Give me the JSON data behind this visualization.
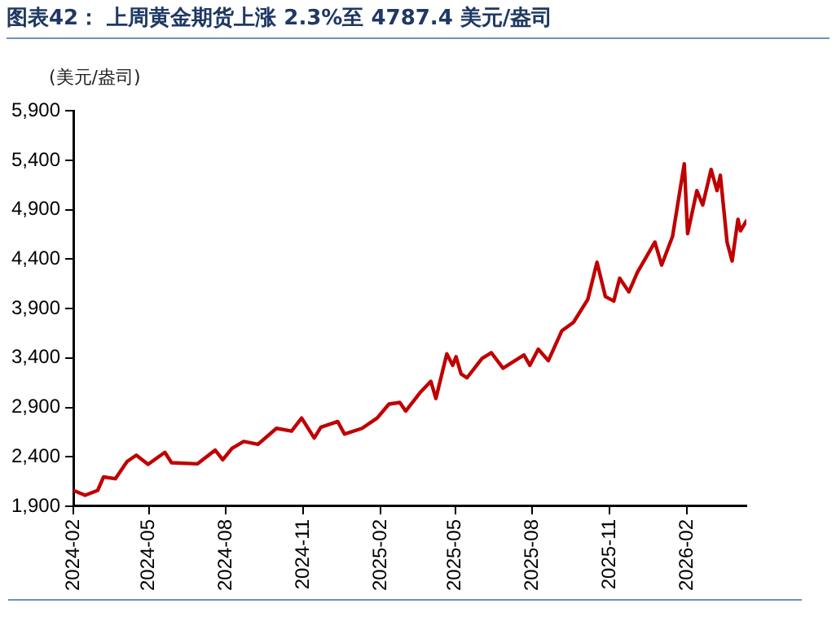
{
  "chart_data": {
    "type": "line",
    "title": "图表42：  上周黄金期货上涨 2.3%至 4787.4 美元/盎司",
    "ylabel": "(美元/盎司)",
    "x": [
      "2024-02-01",
      "2024-02-15",
      "2024-03-01",
      "2024-03-08",
      "2024-03-22",
      "2024-04-05",
      "2024-04-16",
      "2024-04-30",
      "2024-05-20",
      "2024-05-28",
      "2024-06-28",
      "2024-07-19",
      "2024-07-28",
      "2024-08-08",
      "2024-08-22",
      "2024-09-08",
      "2024-09-30",
      "2024-10-18",
      "2024-10-30",
      "2024-11-14",
      "2024-11-22",
      "2024-12-12",
      "2024-12-20",
      "2025-01-10",
      "2025-01-28",
      "2025-02-11",
      "2025-02-24",
      "2025-03-03",
      "2025-03-20",
      "2025-04-02",
      "2025-04-08",
      "2025-04-21",
      "2025-04-28",
      "2025-05-02",
      "2025-05-08",
      "2025-05-15",
      "2025-06-02",
      "2025-06-13",
      "2025-06-27",
      "2025-07-22",
      "2025-07-29",
      "2025-08-08",
      "2025-08-20",
      "2025-09-05",
      "2025-09-19",
      "2025-10-06",
      "2025-10-17",
      "2025-10-27",
      "2025-11-06",
      "2025-11-13",
      "2025-11-24",
      "2025-12-04",
      "2025-12-25",
      "2026-01-02",
      "2026-01-15",
      "2026-01-29",
      "2026-02-02",
      "2026-02-13",
      "2026-02-20",
      "2026-03-02",
      "2026-03-09",
      "2026-03-13",
      "2026-03-21",
      "2026-03-27",
      "2026-04-03",
      "2026-04-06",
      "2026-04-13"
    ],
    "series": [
      {
        "color": "#c00000",
        "values": [
          2060,
          2010,
          2060,
          2196,
          2178,
          2352,
          2416,
          2323,
          2445,
          2340,
          2329,
          2468,
          2370,
          2485,
          2555,
          2526,
          2688,
          2660,
          2792,
          2590,
          2700,
          2757,
          2630,
          2688,
          2792,
          2933,
          2950,
          2863,
          3048,
          3164,
          2990,
          3442,
          3326,
          3413,
          3239,
          3199,
          3396,
          3454,
          3297,
          3431,
          3326,
          3489,
          3373,
          3674,
          3761,
          3993,
          4369,
          4022,
          3976,
          4208,
          4069,
          4265,
          4573,
          4340,
          4630,
          5366,
          4659,
          5094,
          4949,
          5308,
          5094,
          5250,
          4573,
          4382,
          4804,
          4688,
          4787
        ]
      }
    ],
    "xlim": [
      "2024-02-01",
      "2026-04-13"
    ],
    "xticks": [
      {
        "value": "2024-02-01",
        "label": "2024-02"
      },
      {
        "value": "2024-05-01",
        "label": "2024-05"
      },
      {
        "value": "2024-08-01",
        "label": "2024-08"
      },
      {
        "value": "2024-11-01",
        "label": "2024-11"
      },
      {
        "value": "2025-02-01",
        "label": "2025-02"
      },
      {
        "value": "2025-05-01",
        "label": "2025-05"
      },
      {
        "value": "2025-08-01",
        "label": "2025-08"
      },
      {
        "value": "2025-11-01",
        "label": "2025-11"
      },
      {
        "value": "2026-02-01",
        "label": "2026-02"
      }
    ],
    "ylim": [
      1900,
      5900
    ],
    "yticks": [
      {
        "value": 1900,
        "label": "1,900"
      },
      {
        "value": 2400,
        "label": "2,400"
      },
      {
        "value": 2900,
        "label": "2,900"
      },
      {
        "value": 3400,
        "label": "3,400"
      },
      {
        "value": 3900,
        "label": "3,900"
      },
      {
        "value": 4400,
        "label": "4,400"
      },
      {
        "value": 4900,
        "label": "4,900"
      },
      {
        "value": 5400,
        "label": "5,400"
      },
      {
        "value": 5900,
        "label": "5,900"
      }
    ],
    "grid": false,
    "legend": false,
    "marker": "none",
    "line_style": "solid"
  }
}
